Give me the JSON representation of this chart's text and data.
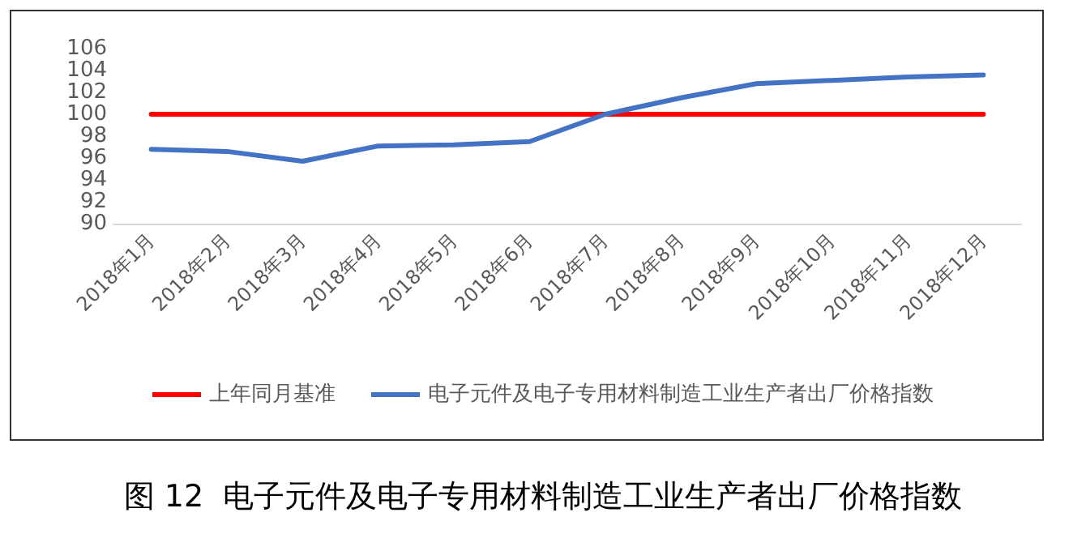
{
  "chart_data": {
    "type": "line",
    "title": "图 12  电子元件及电子专用材料制造工业生产者出厂价格指数",
    "categories": [
      "2018年1月",
      "2018年2月",
      "2018年3月",
      "2018年4月",
      "2018年5月",
      "2018年6月",
      "2018年7月",
      "2018年8月",
      "2018年9月",
      "2018年10月",
      "2018年11月",
      "2018年12月"
    ],
    "series": [
      {
        "name": "上年同月基准",
        "color": "#ff0000",
        "values": [
          100,
          100,
          100,
          100,
          100,
          100,
          100,
          100,
          100,
          100,
          100,
          100
        ]
      },
      {
        "name": "电子元件及电子专用材料制造工业生产者出厂价格指数",
        "color": "#4472c4",
        "values": [
          96.8,
          96.6,
          95.7,
          97.1,
          97.2,
          97.5,
          100.0,
          101.5,
          102.8,
          103.1,
          103.4,
          103.6
        ]
      }
    ],
    "ylim": [
      90,
      106
    ],
    "yticks": [
      90,
      92,
      94,
      96,
      98,
      100,
      102,
      104,
      106
    ],
    "grid": false,
    "legend": "bottom",
    "marker": "none",
    "line_style": "solid"
  }
}
